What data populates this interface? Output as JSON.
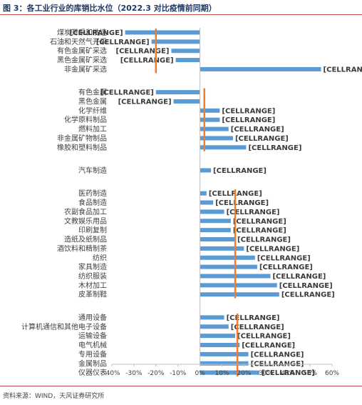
{
  "page": {
    "title": "图 3：各工业行业的库销比水位（2022.3 对比疫情前同期）",
    "source": "资料来源：WIND，天风证券研究所"
  },
  "colors": {
    "bar": "#5b9bd5",
    "avg": "#ed7d31",
    "axis": "#bfbfbf",
    "text": "#404040"
  },
  "chart_data": {
    "type": "bar",
    "orientation": "horizontal",
    "title": "",
    "xlabel": "",
    "ylabel": "",
    "xlim": [
      -0.4,
      0.6
    ],
    "x_ticks": [
      -0.4,
      -0.3,
      -0.2,
      -0.1,
      0,
      0.1,
      0.2,
      0.3,
      0.4,
      0.5,
      0.6
    ],
    "tick_format": "percent",
    "data_label_text": "[CELLRANGE]",
    "groups": [
      {
        "categories": [
          "煤炭开采和洗选",
          "石油和天然气开采",
          "有色金属矿采选",
          "黑色金属矿采选",
          "非金属矿采选"
        ],
        "values": [
          -0.34,
          -0.22,
          -0.13,
          -0.11,
          0.55
        ],
        "group_average": -0.2
      },
      {
        "categories": [
          "有色金属",
          "黑色金属",
          "化学纤维",
          "化学原料制品",
          "燃料加工",
          "非金属矿物制品",
          "橡胶和塑料制品"
        ],
        "values": [
          -0.2,
          -0.12,
          0.09,
          0.09,
          0.13,
          0.15,
          0.21
        ],
        "group_average": 0.02
      },
      {
        "categories": [
          "汽车制造"
        ],
        "values": [
          0.05
        ],
        "group_average": null
      },
      {
        "categories": [
          "医药制造",
          "食品制造",
          "农副食品加工",
          "文教娱乐用品",
          "印刷复制",
          "造纸及纸制品",
          "酒饮料和精制茶",
          "纺织",
          "家具制造",
          "纺织服装",
          "木材加工",
          "皮革制鞋"
        ],
        "values": [
          0.03,
          0.06,
          0.11,
          0.14,
          0.14,
          0.16,
          0.2,
          0.25,
          0.26,
          0.32,
          0.35,
          0.36
        ],
        "group_average": 0.16
      },
      {
        "categories": [
          "通用设备",
          "计算机通信和其他电子设备",
          "运输设备",
          "电气机械",
          "专用设备",
          "金属制品",
          "仪器仪表"
        ],
        "values": [
          0.11,
          0.13,
          0.16,
          0.18,
          0.22,
          0.22,
          0.27
        ],
        "group_average": 0.17
      }
    ]
  }
}
